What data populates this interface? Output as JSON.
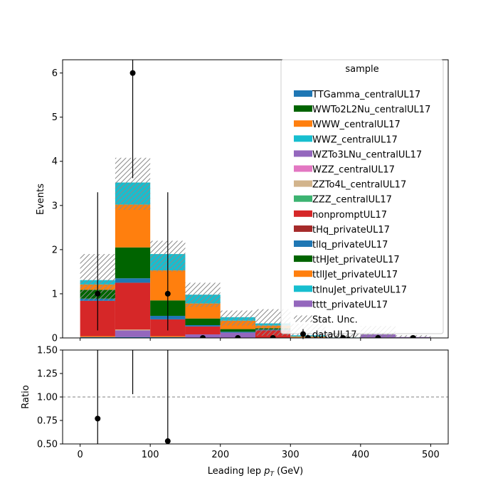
{
  "chart_data": [
    {
      "type": "bar",
      "subtype": "stacked-histogram",
      "ylabel": "Events",
      "xlim": [
        -25,
        525
      ],
      "ylim": [
        0,
        6.3
      ],
      "bin_edges": [
        0,
        50,
        100,
        150,
        200,
        250,
        300,
        350,
        400,
        450,
        500
      ],
      "xticks": [
        "0",
        "100",
        "200",
        "300",
        "400",
        "500"
      ],
      "yticks": [
        "0",
        "1",
        "2",
        "3",
        "4",
        "5",
        "6"
      ],
      "legend_title": "sample",
      "legend_position": "upper right",
      "series": [
        {
          "name": "TTGamma_centralUL17",
          "color": "#1f77b4",
          "values": [
            0.02,
            0.02,
            0.02,
            0.0,
            0.0,
            0.0,
            0.0,
            0.0,
            0.0,
            0.0
          ]
        },
        {
          "name": "WWTo2L2Nu_centralUL17",
          "color": "#006400",
          "values": [
            0.0,
            0.0,
            0.0,
            0.0,
            0.0,
            0.0,
            0.0,
            0.0,
            0.0,
            0.0
          ]
        },
        {
          "name": "WWW_centralUL17",
          "color": "#ff7f0e",
          "values": [
            0.02,
            0.0,
            0.02,
            0.0,
            0.0,
            0.0,
            0.0,
            0.0,
            0.0,
            0.0
          ]
        },
        {
          "name": "WWZ_centralUL17",
          "color": "#17becf",
          "values": [
            0.0,
            0.0,
            0.0,
            0.0,
            0.0,
            0.0,
            0.0,
            0.0,
            0.0,
            0.0
          ]
        },
        {
          "name": "WZTo3LNu_centralUL17",
          "color": "#9467bd",
          "values": [
            0.0,
            0.15,
            0.0,
            0.08,
            0.12,
            0.0,
            0.0,
            0.0,
            0.08,
            0.02
          ]
        },
        {
          "name": "WZZ_centralUL17",
          "color": "#e377c2",
          "values": [
            0.0,
            0.0,
            0.0,
            0.0,
            0.0,
            0.0,
            0.0,
            0.0,
            0.0,
            0.0
          ]
        },
        {
          "name": "ZZTo4L_centralUL17",
          "color": "#d2b48c",
          "values": [
            0.0,
            0.02,
            0.0,
            0.0,
            0.0,
            0.0,
            0.0,
            0.0,
            0.0,
            0.0
          ]
        },
        {
          "name": "ZZZ_centralUL17",
          "color": "#3cb371",
          "values": [
            0.0,
            0.0,
            0.0,
            0.0,
            0.0,
            0.0,
            0.0,
            0.0,
            0.0,
            0.0
          ]
        },
        {
          "name": "nonpromptUL17",
          "color": "#d62728",
          "values": [
            0.8,
            1.06,
            0.38,
            0.18,
            0.0,
            0.17,
            0.0,
            0.0,
            0.0,
            0.0
          ]
        },
        {
          "name": "tHq_privateUL17",
          "color": "#a52a2a",
          "values": [
            0.0,
            0.0,
            0.0,
            0.0,
            0.0,
            0.0,
            0.0,
            0.0,
            0.0,
            0.0
          ]
        },
        {
          "name": "tllq_privateUL17",
          "color": "#1f77b4",
          "values": [
            0.05,
            0.1,
            0.08,
            0.03,
            0.02,
            0.02,
            0.0,
            0.0,
            0.0,
            0.0
          ]
        },
        {
          "name": "ttHJet_privateUL17",
          "color": "#006400",
          "values": [
            0.2,
            0.7,
            0.35,
            0.15,
            0.06,
            0.03,
            0.01,
            0.0,
            0.0,
            0.0
          ]
        },
        {
          "name": "ttllJet_privateUL17",
          "color": "#ff7f0e",
          "values": [
            0.12,
            0.97,
            0.68,
            0.34,
            0.19,
            0.06,
            0.02,
            0.0,
            0.0,
            0.0
          ]
        },
        {
          "name": "ttlnuJet_privateUL17",
          "color": "#17becf",
          "values": [
            0.1,
            0.5,
            0.37,
            0.2,
            0.08,
            0.05,
            0.03,
            0.01,
            0.0,
            0.0
          ]
        },
        {
          "name": "tttt_privateUL17",
          "color": "#9467bd",
          "values": [
            0.0,
            0.0,
            0.0,
            0.0,
            0.0,
            0.0,
            0.0,
            0.0,
            0.0,
            0.0
          ]
        }
      ],
      "stat_unc": {
        "name": "Stat. Unc.",
        "lower": [
          0.85,
          2.9,
          1.5,
          0.7,
          0.28,
          0.05,
          0.02,
          0.0,
          0.0,
          0.0
        ],
        "upper": [
          1.9,
          4.08,
          2.2,
          1.25,
          0.62,
          0.65,
          0.32,
          0.12,
          0.27,
          0.06
        ]
      },
      "data": {
        "name": "dataUL17",
        "x": [
          25,
          75,
          125,
          175,
          225,
          275,
          325,
          375,
          425,
          475
        ],
        "y": [
          1,
          6,
          1,
          0,
          0,
          0,
          0,
          0,
          0,
          0
        ],
        "yerr_low": [
          0.83,
          2.38,
          0.83,
          0,
          0,
          0,
          0,
          0,
          0,
          0
        ],
        "yerr_high": [
          2.3,
          3.6,
          2.3,
          0,
          0,
          0,
          0,
          0,
          0,
          0
        ]
      }
    },
    {
      "type": "scatter",
      "subtype": "ratio",
      "ylabel": "Ratio",
      "xlabel": "Leading lep $p_T$ (GeV)",
      "xlim": [
        -25,
        525
      ],
      "ylim": [
        0.5,
        1.5
      ],
      "xticks": [
        "0",
        "100",
        "200",
        "300",
        "400",
        "500"
      ],
      "yticks": [
        "0.50",
        "0.75",
        "1.00",
        "1.25",
        "1.50"
      ],
      "reference_line": 1.0,
      "points": {
        "x": [
          25,
          125
        ],
        "y": [
          0.77,
          0.53
        ],
        "yerr_low": [
          0.4,
          0.1
        ],
        "yerr_high": [
          1.2,
          1.6
        ]
      },
      "extra_error_bars": [
        {
          "x": 75,
          "low": 1.03,
          "high": 1.5
        }
      ]
    }
  ]
}
